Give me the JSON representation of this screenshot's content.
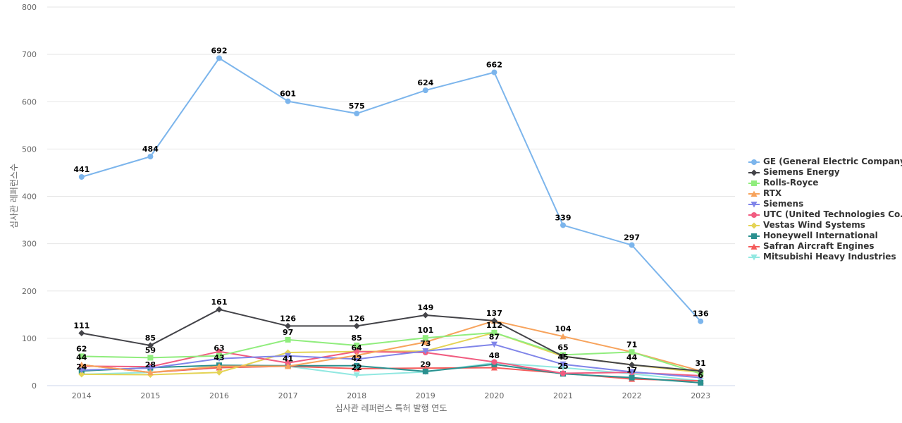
{
  "chart_data": {
    "type": "line",
    "title": "",
    "xlabel": "심사관 레퍼런스 특허 발행 연도",
    "ylabel": "심사관 레퍼런스수",
    "x": [
      "2014",
      "2015",
      "2016",
      "2017",
      "2018",
      "2019",
      "2020",
      "2021",
      "2022",
      "2023"
    ],
    "ylim": [
      0,
      800
    ],
    "yticks": [
      "0",
      "100",
      "200",
      "300",
      "400",
      "500",
      "600",
      "700",
      "800"
    ],
    "grid": true,
    "legend_position": "right",
    "series": [
      {
        "name": "GE (General Electric Company)",
        "color": "#7cb5ec",
        "marker": "circle",
        "values": [
          441,
          484,
          692,
          601,
          575,
          624,
          662,
          339,
          297,
          136
        ],
        "labels": [
          "441",
          "484",
          "692",
          "601",
          "575",
          "624",
          "662",
          "339",
          "297",
          "136"
        ]
      },
      {
        "name": "Siemens Energy",
        "color": "#434348",
        "marker": "diamond",
        "values": [
          111,
          85,
          161,
          126,
          126,
          149,
          137,
          62,
          44,
          31
        ],
        "labels": [
          "111",
          "85",
          "161",
          "126",
          "126",
          "149",
          "137",
          "",
          "",
          ""
        ]
      },
      {
        "name": "Rolls-Royce",
        "color": "#90ed7d",
        "marker": "square",
        "values": [
          62,
          59,
          63,
          97,
          85,
          101,
          112,
          65,
          71,
          25
        ],
        "labels": [
          "62",
          "59",
          "63",
          "97",
          "85",
          "101",
          "112",
          "65",
          "71",
          ""
        ]
      },
      {
        "name": "RTX",
        "color": "#f7a35c",
        "marker": "triangle",
        "values": [
          44,
          28,
          41,
          41,
          64,
          92,
          137,
          104,
          71,
          31
        ],
        "labels": [
          "44",
          "",
          "",
          "",
          "64",
          "",
          "",
          "104",
          "",
          "31"
        ]
      },
      {
        "name": "Siemens",
        "color": "#8085e9",
        "marker": "triangle-down",
        "values": [
          33,
          37,
          57,
          63,
          56,
          73,
          87,
          45,
          29,
          17
        ],
        "labels": [
          "",
          "",
          "",
          "",
          "",
          "73",
          "87",
          "45",
          "",
          ""
        ]
      },
      {
        "name": "UTC (United Technologies Co...",
        "color": "#f15c80",
        "marker": "circle",
        "values": [
          41,
          40,
          72,
          48,
          72,
          70,
          50,
          26,
          28,
          21
        ],
        "labels": [
          "",
          "",
          "",
          "",
          "",
          "",
          "",
          "",
          "",
          ""
        ]
      },
      {
        "name": "Vestas Wind Systems",
        "color": "#e4d354",
        "marker": "diamond",
        "values": [
          24,
          23,
          28,
          70,
          72,
          73,
          112,
          62,
          44,
          28
        ],
        "labels": [
          "24",
          "",
          "",
          "",
          "",
          "",
          "",
          "",
          "44",
          ""
        ]
      },
      {
        "name": "Honeywell International",
        "color": "#2b908f",
        "marker": "square",
        "values": [
          31,
          38,
          43,
          42,
          42,
          30,
          45,
          25,
          17,
          6
        ],
        "labels": [
          "",
          "",
          "43",
          "",
          "42",
          "",
          "",
          "25",
          "17",
          "6"
        ]
      },
      {
        "name": "Safran Aircraft Engines",
        "color": "#f45b5b",
        "marker": "triangle",
        "values": [
          44,
          28,
          38,
          41,
          36,
          37,
          38,
          26,
          14,
          10
        ],
        "labels": [
          "",
          "28",
          "",
          "41",
          "",
          "",
          "",
          "",
          "",
          ""
        ]
      },
      {
        "name": "Mitsubishi Heavy Industries",
        "color": "#91e8e1",
        "marker": "triangle-down",
        "values": [
          24,
          28,
          38,
          41,
          22,
          29,
          48,
          38,
          25,
          10
        ],
        "labels": [
          "",
          "",
          "",
          "",
          "22",
          "29",
          "48",
          "",
          "",
          ""
        ]
      }
    ]
  }
}
